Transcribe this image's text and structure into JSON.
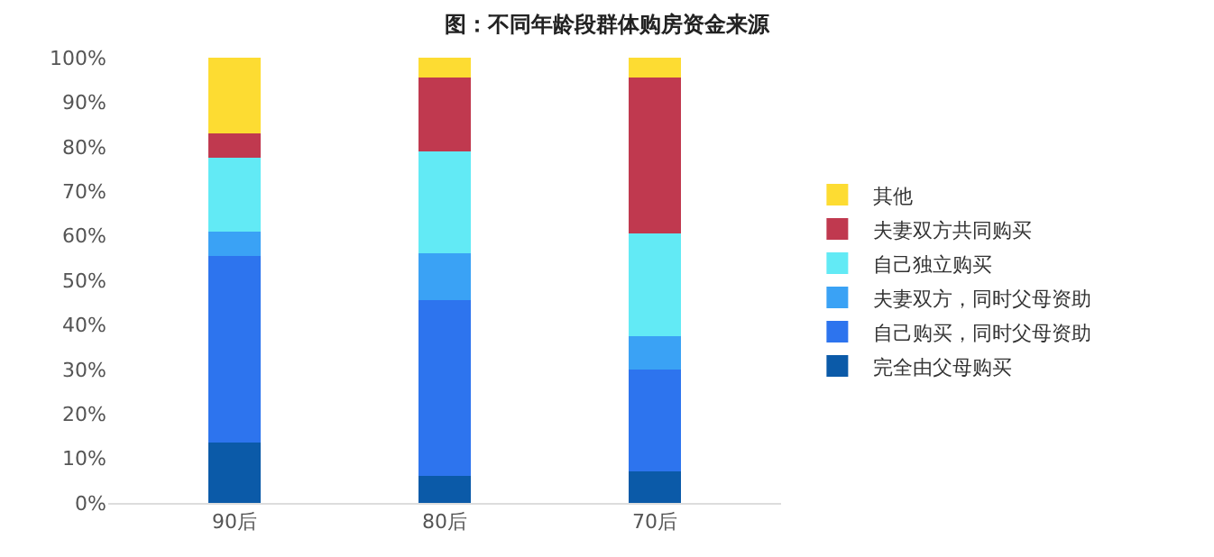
{
  "chart_data": {
    "type": "bar",
    "title": "图：不同年龄段群体购房资金来源",
    "categories": [
      "90后",
      "80后",
      "70后"
    ],
    "stacked": true,
    "series": [
      {
        "name": "完全由父母购买",
        "color": "#0b5aa8",
        "values": [
          13.5,
          6,
          7
        ]
      },
      {
        "name": "自己购买，同时父母资助",
        "color": "#2d74ee",
        "values": [
          42,
          39.5,
          23
        ]
      },
      {
        "name": "夫妻双方，同时父母资助",
        "color": "#3aa2f5",
        "values": [
          5.5,
          10.5,
          7.5
        ]
      },
      {
        "name": "自己独立购买",
        "color": "#62eaf5",
        "values": [
          16.5,
          23,
          23
        ]
      },
      {
        "name": "夫妻双方共同购买",
        "color": "#c0394f",
        "values": [
          5.5,
          16.5,
          35
        ]
      },
      {
        "name": "其他",
        "color": "#fddc32",
        "values": [
          17,
          4.5,
          4.5
        ]
      }
    ],
    "ylim": [
      0,
      100
    ],
    "yticks": [
      {
        "value": 0,
        "label": "0%"
      },
      {
        "value": 10,
        "label": "10%"
      },
      {
        "value": 20,
        "label": "20%"
      },
      {
        "value": 30,
        "label": "30%"
      },
      {
        "value": 40,
        "label": "40%"
      },
      {
        "value": 50,
        "label": "50%"
      },
      {
        "value": 60,
        "label": "60%"
      },
      {
        "value": 70,
        "label": "70%"
      },
      {
        "value": 80,
        "label": "80%"
      },
      {
        "value": 90,
        "label": "90%"
      },
      {
        "value": 100,
        "label": "100%"
      }
    ],
    "legend": "right"
  }
}
